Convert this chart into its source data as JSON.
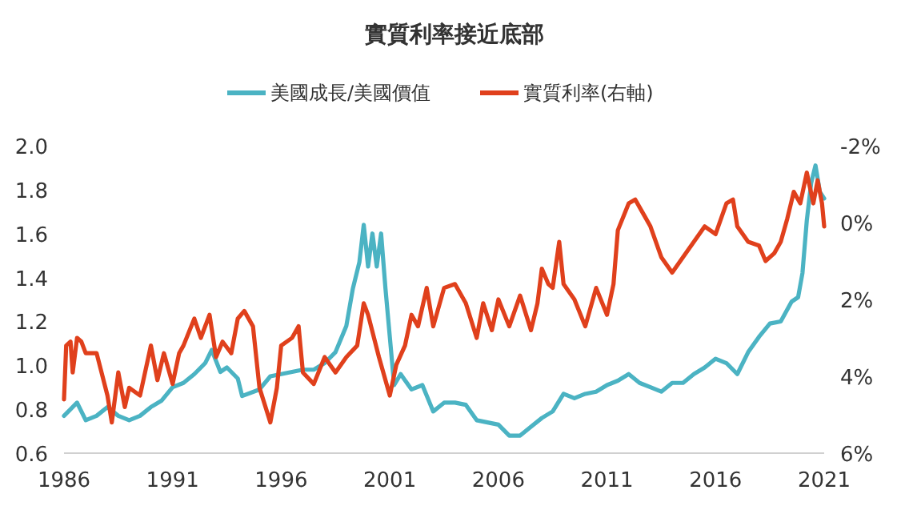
{
  "chart_data": {
    "type": "line",
    "title": "實質利率接近底部",
    "legend": "top",
    "grid": false,
    "line_style": "solid",
    "marker": "none",
    "xlim": [
      1986,
      2021
    ],
    "xticks": [
      1986,
      1991,
      1996,
      2001,
      2006,
      2011,
      2016,
      2021
    ],
    "ylim": [
      0.6,
      2.0
    ],
    "yticks": [
      {
        "value": 0.6,
        "label": "0.6"
      },
      {
        "value": 0.8,
        "label": "0.8"
      },
      {
        "value": 1.0,
        "label": "1.0"
      },
      {
        "value": 1.2,
        "label": "1.2"
      },
      {
        "value": 1.4,
        "label": "1.4"
      },
      {
        "value": 1.6,
        "label": "1.6"
      },
      {
        "value": 1.8,
        "label": "1.8"
      },
      {
        "value": 2.0,
        "label": "2.0"
      }
    ],
    "y2lim": [
      6,
      -2
    ],
    "y2ticks": [
      {
        "value": -2,
        "label": "-2%"
      },
      {
        "value": 0,
        "label": "0%"
      },
      {
        "value": 2,
        "label": "2%"
      },
      {
        "value": 4,
        "label": "4%"
      },
      {
        "value": 6,
        "label": "6%"
      }
    ],
    "series": [
      {
        "name": "美國成長/美國價值",
        "color": "#4bb3c3",
        "x": [
          1986,
          1986.4,
          1986.6,
          1987,
          1987.5,
          1988,
          1988.5,
          1989,
          1989.5,
          1990,
          1990.5,
          1991,
          1991.5,
          1992,
          1992.5,
          1992.8,
          1993.2,
          1993.5,
          1994,
          1994.2,
          1995,
          1995.5,
          1996,
          1996.5,
          1997,
          1997.5,
          1998,
          1998.5,
          1999,
          1999.3,
          1999.6,
          1999.8,
          2000,
          2000.2,
          2000.4,
          2000.6,
          2000.8,
          2001,
          2001.2,
          2001.5,
          2002,
          2002.5,
          2003,
          2003.5,
          2004,
          2004.5,
          2005,
          2005.5,
          2006,
          2006.5,
          2007,
          2007.5,
          2008,
          2008.5,
          2009,
          2009.5,
          2010,
          2010.5,
          2011,
          2011.5,
          2012,
          2012.5,
          2013,
          2013.5,
          2014,
          2014.5,
          2015,
          2015.5,
          2016,
          2016.5,
          2017,
          2017.5,
          2018,
          2018.5,
          2019,
          2019.5,
          2019.8,
          2020,
          2020.2,
          2020.4,
          2020.6,
          2020.8,
          2021
        ],
        "values": [
          0.77,
          0.81,
          0.83,
          0.75,
          0.77,
          0.81,
          0.77,
          0.75,
          0.77,
          0.81,
          0.84,
          0.9,
          0.92,
          0.96,
          1.01,
          1.07,
          0.97,
          0.99,
          0.94,
          0.86,
          0.89,
          0.95,
          0.96,
          0.97,
          0.98,
          0.98,
          1.01,
          1.06,
          1.18,
          1.35,
          1.47,
          1.64,
          1.45,
          1.6,
          1.45,
          1.6,
          1.35,
          1.13,
          0.91,
          0.96,
          0.89,
          0.91,
          0.79,
          0.83,
          0.83,
          0.82,
          0.75,
          0.74,
          0.73,
          0.68,
          0.68,
          0.72,
          0.76,
          0.79,
          0.87,
          0.85,
          0.87,
          0.88,
          0.91,
          0.93,
          0.96,
          0.92,
          0.9,
          0.88,
          0.92,
          0.92,
          0.96,
          0.99,
          1.03,
          1.01,
          0.96,
          1.06,
          1.13,
          1.19,
          1.2,
          1.29,
          1.31,
          1.42,
          1.66,
          1.83,
          1.91,
          1.79,
          1.76
        ]
      },
      {
        "name": "實質利率(右軸)",
        "color": "#e0401c",
        "axis": "y2",
        "x": [
          1986,
          1986.1,
          1986.3,
          1986.4,
          1986.6,
          1986.8,
          1987,
          1987.5,
          1988,
          1988.2,
          1988.5,
          1988.8,
          1989,
          1989.5,
          1990,
          1990.3,
          1990.6,
          1991,
          1991.3,
          1991.5,
          1992,
          1992.3,
          1992.7,
          1993,
          1993.3,
          1993.7,
          1994,
          1994.3,
          1994.7,
          1995,
          1995.5,
          1995.8,
          1996,
          1996.5,
          1996.8,
          1997,
          1997.5,
          1998,
          1998.5,
          1999,
          1999.5,
          1999.8,
          2000,
          2000.5,
          2001,
          2001.3,
          2001.7,
          2002,
          2002.3,
          2002.7,
          2003,
          2003.5,
          2004,
          2004.5,
          2005,
          2005.3,
          2005.7,
          2006,
          2006.5,
          2007,
          2007.5,
          2007.8,
          2008,
          2008.3,
          2008.5,
          2008.8,
          2009,
          2009.5,
          2010,
          2010.5,
          2011,
          2011.3,
          2011.5,
          2012,
          2012.3,
          2012.7,
          2013,
          2013.5,
          2014,
          2014.5,
          2015,
          2015.5,
          2016,
          2016.5,
          2016.8,
          2017,
          2017.5,
          2018,
          2018.3,
          2018.7,
          2019,
          2019.3,
          2019.6,
          2019.9,
          2020.2,
          2020.5,
          2020.7,
          2020.9,
          2021
        ],
        "values": [
          4.6,
          3.2,
          3.1,
          3.9,
          3,
          3.1,
          3.4,
          3.4,
          4.5,
          5.2,
          3.9,
          4.8,
          4.3,
          4.5,
          3.2,
          4.1,
          3.4,
          4.2,
          3.4,
          3.2,
          2.5,
          3,
          2.4,
          3.5,
          3.1,
          3.4,
          2.5,
          2.3,
          2.7,
          4.3,
          5.2,
          4.3,
          3.2,
          3,
          2.7,
          3.9,
          4.2,
          3.5,
          3.9,
          3.5,
          3.2,
          2.1,
          2.4,
          3.5,
          4.5,
          3.7,
          3.2,
          2.4,
          2.7,
          1.7,
          2.7,
          1.7,
          1.6,
          2.1,
          3,
          2.1,
          2.8,
          2,
          2.7,
          1.9,
          2.8,
          2.1,
          1.2,
          1.6,
          1.7,
          0.5,
          1.6,
          2,
          2.7,
          1.7,
          2.4,
          1.6,
          0.2,
          -0.5,
          -0.6,
          -0.2,
          0.1,
          0.9,
          1.3,
          0.9,
          0.5,
          0.1,
          0.3,
          -0.5,
          -0.6,
          0.1,
          0.5,
          0.6,
          1,
          0.8,
          0.5,
          -0.1,
          -0.8,
          -0.5,
          -1.3,
          -0.5,
          -1.1,
          -0.5,
          0.1
        ]
      }
    ]
  }
}
